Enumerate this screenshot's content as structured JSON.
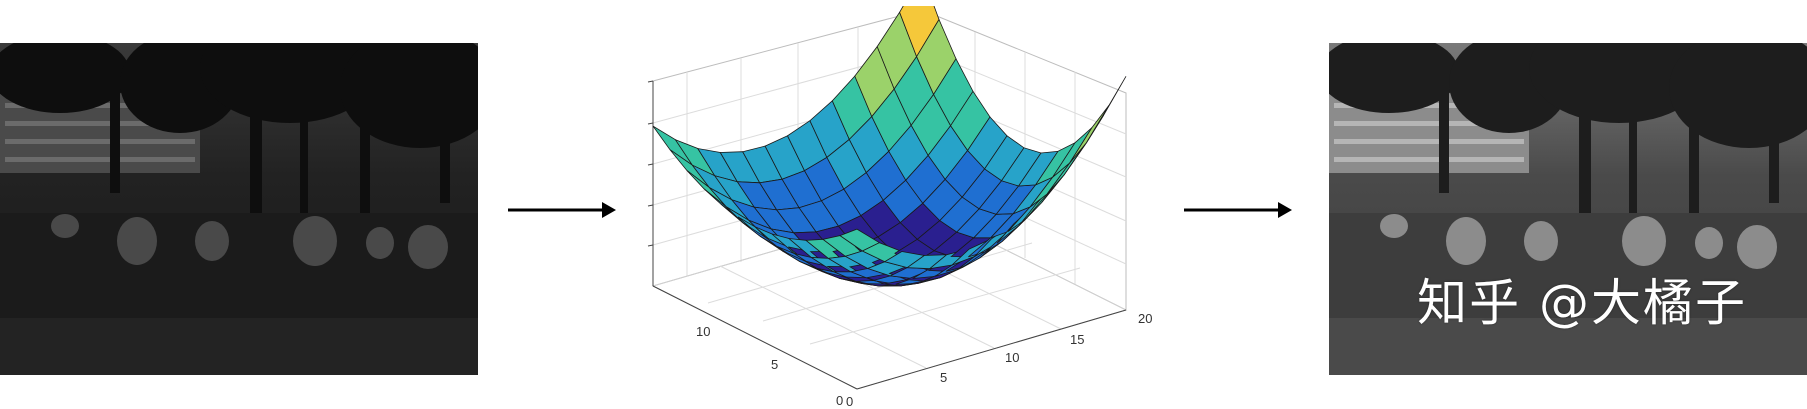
{
  "figure": {
    "input_image": {
      "description_icon": "dark-park-photo-icon"
    },
    "output_image": {
      "description_icon": "enhanced-park-photo-icon",
      "watermark": "知乎 @大橘子"
    },
    "arrows": [
      "arrow-right-icon",
      "arrow-right-icon"
    ],
    "surface_plot": {
      "type": "3d-surface",
      "x_ticks": [
        "0",
        "5",
        "10",
        "15",
        "20"
      ],
      "y_ticks": [
        "0",
        "5",
        "10"
      ],
      "grid": true,
      "colormap": [
        "#2a1f8f",
        "#1f6fd1",
        "#27a3c9",
        "#36c3a3",
        "#9bd26a",
        "#f5c83a"
      ]
    }
  }
}
